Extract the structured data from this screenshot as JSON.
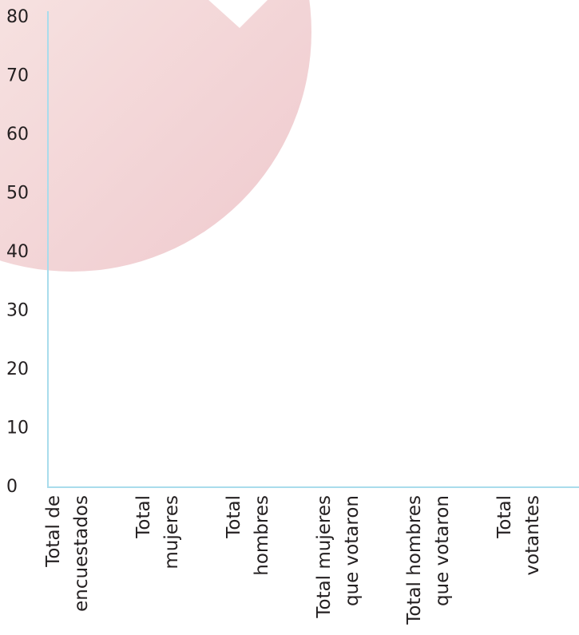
{
  "chart_data": {
    "type": "bar",
    "categories": [
      [
        "Total de",
        "encuestados"
      ],
      [
        "Total",
        "mujeres"
      ],
      [
        "Total",
        "hombres"
      ],
      [
        "Total  mujeres",
        "que votaron"
      ],
      [
        "Total hombres",
        "que votaron"
      ],
      [
        "Total",
        "votantes"
      ]
    ],
    "ylim": [
      0,
      80
    ],
    "yticks": [
      0,
      10,
      20,
      30,
      40,
      50,
      60,
      70,
      80
    ],
    "grid": false,
    "axis_color": "#a9dcec"
  }
}
